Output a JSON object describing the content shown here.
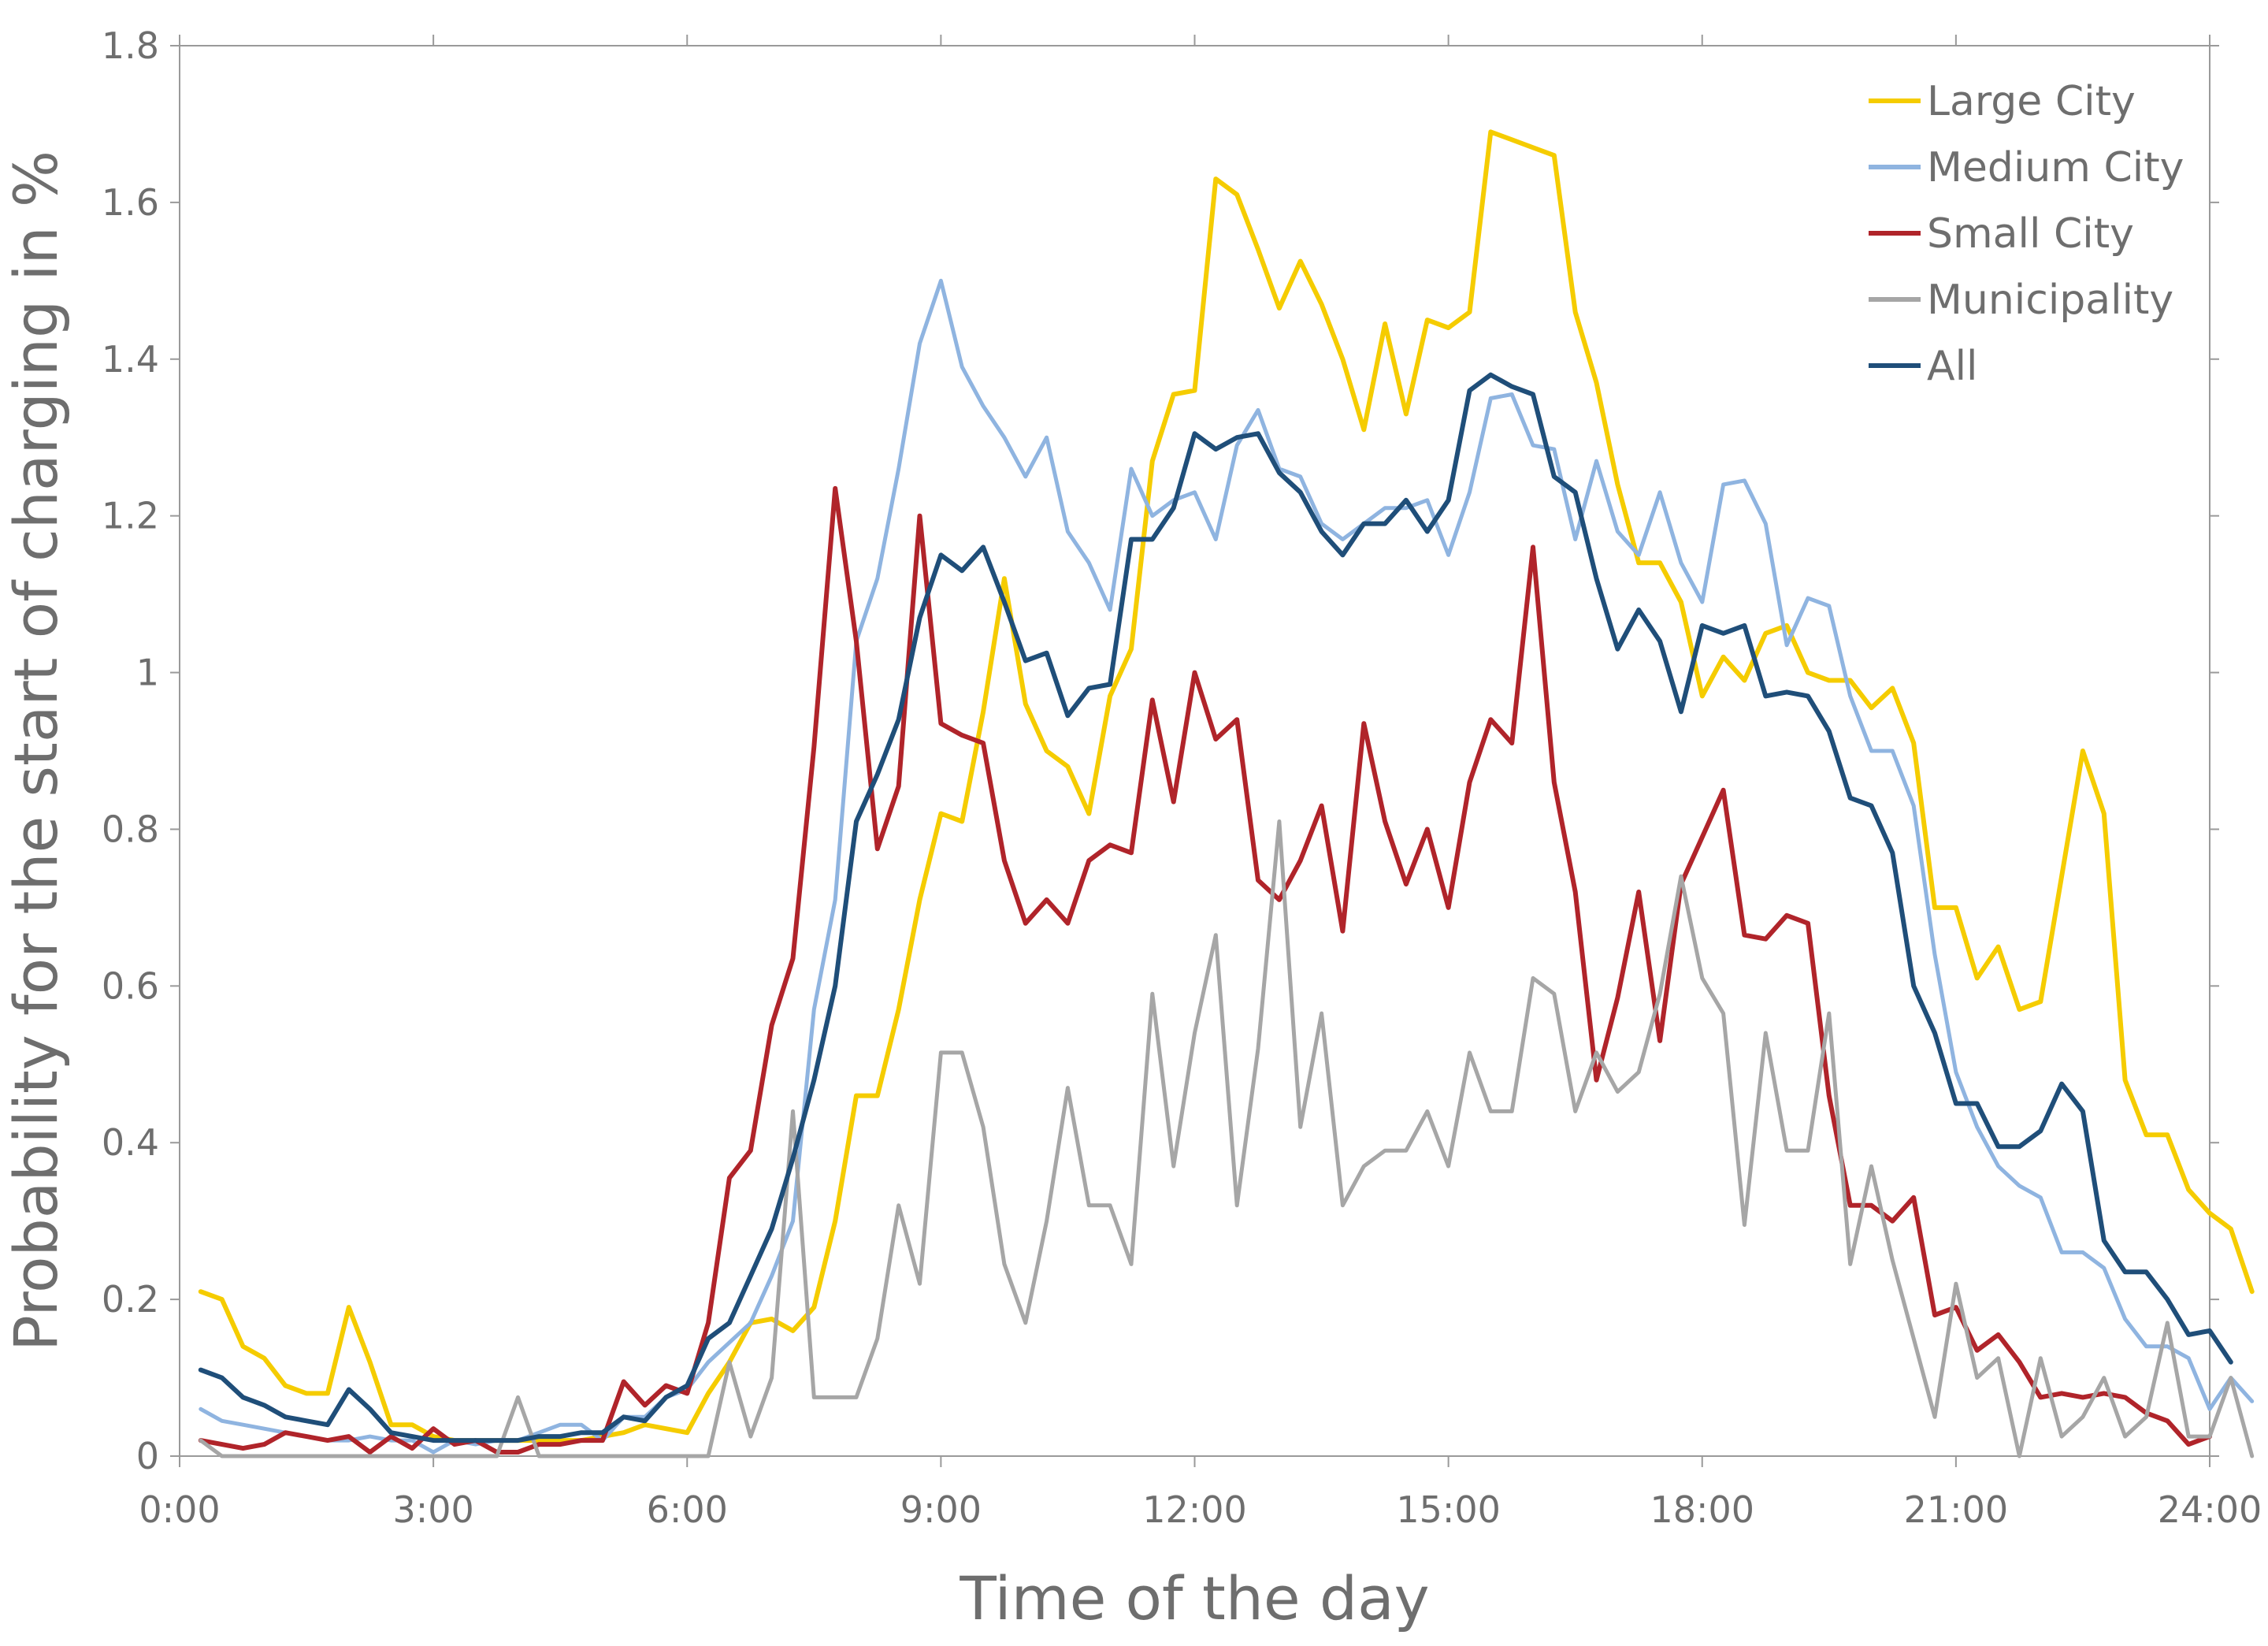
{
  "chart_data": {
    "type": "line",
    "xlabel": "Time of the day",
    "ylabel": "Probability for the start of charging in %",
    "xlim": [
      0,
      24
    ],
    "ylim": [
      0,
      1.8
    ],
    "x_ticks": [
      {
        "value": 0,
        "label": "0:00"
      },
      {
        "value": 3,
        "label": "3:00"
      },
      {
        "value": 6,
        "label": "6:00"
      },
      {
        "value": 9,
        "label": "9:00"
      },
      {
        "value": 12,
        "label": "12:00"
      },
      {
        "value": 15,
        "label": "15:00"
      },
      {
        "value": 18,
        "label": "18:00"
      },
      {
        "value": 21,
        "label": "21:00"
      },
      {
        "value": 24,
        "label": "24:00"
      }
    ],
    "y_ticks": [
      {
        "value": 0,
        "label": "0"
      },
      {
        "value": 0.2,
        "label": "0.2"
      },
      {
        "value": 0.4,
        "label": "0.4"
      },
      {
        "value": 0.6,
        "label": "0.6"
      },
      {
        "value": 0.8,
        "label": "0.8"
      },
      {
        "value": 1.0,
        "label": "1"
      },
      {
        "value": 1.2,
        "label": "1.2"
      },
      {
        "value": 1.4,
        "label": "1.4"
      },
      {
        "value": 1.6,
        "label": "1.6"
      },
      {
        "value": 1.8,
        "label": "1.8"
      }
    ],
    "grid": false,
    "legend_position": "top-right",
    "x_step_hours": 0.25,
    "x_start_hours": 0.25,
    "series": [
      {
        "name": "Large City",
        "color": "#f5cc00",
        "values": [
          0.21,
          0.2,
          0.14,
          0.125,
          0.09,
          0.08,
          0.08,
          0.19,
          0.12,
          0.04,
          0.04,
          0.025,
          0.02,
          0.02,
          0.02,
          0.02,
          0.02,
          0.02,
          0.02,
          0.025,
          0.03,
          0.04,
          0.035,
          0.03,
          0.08,
          0.12,
          0.17,
          0.175,
          0.16,
          0.19,
          0.3,
          0.46,
          0.46,
          0.57,
          0.71,
          0.82,
          0.81,
          0.95,
          1.12,
          0.96,
          0.9,
          0.88,
          0.82,
          0.97,
          1.03,
          1.27,
          1.355,
          1.36,
          1.63,
          1.61,
          1.54,
          1.465,
          1.525,
          1.47,
          1.4,
          1.31,
          1.445,
          1.33,
          1.45,
          1.44,
          1.46,
          1.69,
          1.68,
          1.67,
          1.66,
          1.46,
          1.37,
          1.24,
          1.14,
          1.14,
          1.09,
          0.97,
          1.02,
          0.99,
          1.05,
          1.06,
          1.0,
          0.99,
          0.99,
          0.955,
          0.98,
          0.91,
          0.7,
          0.7,
          0.61,
          0.65,
          0.57,
          0.58,
          0.74,
          0.9,
          0.82,
          0.48,
          0.41,
          0.41,
          0.34,
          0.31,
          0.29,
          0.21
        ]
      },
      {
        "name": "Medium City",
        "color": "#8fb4e0",
        "values": [
          0.06,
          0.045,
          0.04,
          0.035,
          0.03,
          0.025,
          0.02,
          0.02,
          0.025,
          0.02,
          0.02,
          0.005,
          0.02,
          0.015,
          0.02,
          0.02,
          0.03,
          0.04,
          0.04,
          0.02,
          0.05,
          0.05,
          0.075,
          0.085,
          0.12,
          0.145,
          0.17,
          0.23,
          0.3,
          0.57,
          0.71,
          1.04,
          1.12,
          1.26,
          1.42,
          1.5,
          1.39,
          1.34,
          1.3,
          1.25,
          1.3,
          1.18,
          1.14,
          1.08,
          1.26,
          1.2,
          1.22,
          1.23,
          1.17,
          1.29,
          1.335,
          1.26,
          1.25,
          1.19,
          1.17,
          1.19,
          1.21,
          1.21,
          1.22,
          1.15,
          1.23,
          1.35,
          1.355,
          1.29,
          1.285,
          1.17,
          1.27,
          1.18,
          1.15,
          1.23,
          1.14,
          1.09,
          1.24,
          1.245,
          1.19,
          1.035,
          1.095,
          1.085,
          0.97,
          0.9,
          0.9,
          0.83,
          0.64,
          0.49,
          0.42,
          0.37,
          0.345,
          0.33,
          0.26,
          0.26,
          0.24,
          0.175,
          0.14,
          0.14,
          0.125,
          0.06,
          0.1,
          0.07
        ]
      },
      {
        "name": "Small City",
        "color": "#b0242a",
        "values": [
          0.02,
          0.015,
          0.01,
          0.015,
          0.03,
          0.025,
          0.02,
          0.025,
          0.005,
          0.025,
          0.01,
          0.035,
          0.015,
          0.02,
          0.005,
          0.005,
          0.015,
          0.015,
          0.02,
          0.02,
          0.095,
          0.065,
          0.09,
          0.08,
          0.17,
          0.355,
          0.39,
          0.55,
          0.635,
          0.905,
          1.235,
          1.04,
          0.775,
          0.855,
          1.2,
          0.935,
          0.92,
          0.91,
          0.76,
          0.68,
          0.71,
          0.68,
          0.76,
          0.78,
          0.77,
          0.965,
          0.835,
          1.0,
          0.915,
          0.94,
          0.735,
          0.71,
          0.76,
          0.83,
          0.67,
          0.935,
          0.81,
          0.73,
          0.8,
          0.7,
          0.86,
          0.94,
          0.91,
          1.16,
          0.86,
          0.72,
          0.48,
          0.585,
          0.72,
          0.53,
          0.73,
          0.79,
          0.85,
          0.665,
          0.66,
          0.69,
          0.68,
          0.46,
          0.32,
          0.32,
          0.3,
          0.33,
          0.18,
          0.19,
          0.135,
          0.155,
          0.12,
          0.075,
          0.08,
          0.075,
          0.08,
          0.075,
          0.055,
          0.045,
          0.015,
          0.025
        ]
      },
      {
        "name": "Municipality",
        "color": "#a6a6a6",
        "values": [
          0.02,
          0,
          0,
          0,
          0,
          0,
          0,
          0,
          0,
          0,
          0,
          0,
          0,
          0,
          0,
          0.075,
          0,
          0,
          0,
          0,
          0,
          0,
          0,
          0,
          0,
          0.12,
          0.025,
          0.1,
          0.44,
          0.075,
          0.075,
          0.075,
          0.15,
          0.32,
          0.22,
          0.515,
          0.515,
          0.42,
          0.245,
          0.17,
          0.3,
          0.47,
          0.32,
          0.32,
          0.245,
          0.59,
          0.37,
          0.54,
          0.665,
          0.32,
          0.52,
          0.81,
          0.42,
          0.565,
          0.32,
          0.37,
          0.39,
          0.39,
          0.44,
          0.37,
          0.515,
          0.44,
          0.44,
          0.61,
          0.59,
          0.44,
          0.515,
          0.465,
          0.49,
          0.59,
          0.74,
          0.61,
          0.565,
          0.295,
          0.54,
          0.39,
          0.39,
          0.565,
          0.245,
          0.37,
          0.25,
          0.15,
          0.05,
          0.22,
          0.1,
          0.125,
          0,
          0.125,
          0.025,
          0.05,
          0.1,
          0.025,
          0.05,
          0.17,
          0.025,
          0.025,
          0.1,
          0
        ]
      },
      {
        "name": "All",
        "color": "#1f4e79",
        "values": [
          0.11,
          0.1,
          0.075,
          0.065,
          0.05,
          0.045,
          0.04,
          0.085,
          0.06,
          0.03,
          0.025,
          0.02,
          0.02,
          0.02,
          0.02,
          0.02,
          0.025,
          0.025,
          0.03,
          0.03,
          0.05,
          0.045,
          0.075,
          0.09,
          0.15,
          0.17,
          0.23,
          0.29,
          0.38,
          0.48,
          0.6,
          0.81,
          0.87,
          0.94,
          1.07,
          1.15,
          1.13,
          1.16,
          1.09,
          1.015,
          1.025,
          0.945,
          0.98,
          0.985,
          1.17,
          1.17,
          1.21,
          1.305,
          1.285,
          1.3,
          1.305,
          1.255,
          1.23,
          1.18,
          1.15,
          1.19,
          1.19,
          1.22,
          1.18,
          1.22,
          1.36,
          1.38,
          1.365,
          1.355,
          1.25,
          1.23,
          1.12,
          1.03,
          1.08,
          1.04,
          0.95,
          1.06,
          1.05,
          1.06,
          0.97,
          0.975,
          0.97,
          0.925,
          0.84,
          0.83,
          0.77,
          0.6,
          0.54,
          0.45,
          0.45,
          0.395,
          0.395,
          0.415,
          0.475,
          0.44,
          0.275,
          0.235,
          0.235,
          0.2,
          0.155,
          0.16,
          0.12
        ]
      }
    ]
  }
}
